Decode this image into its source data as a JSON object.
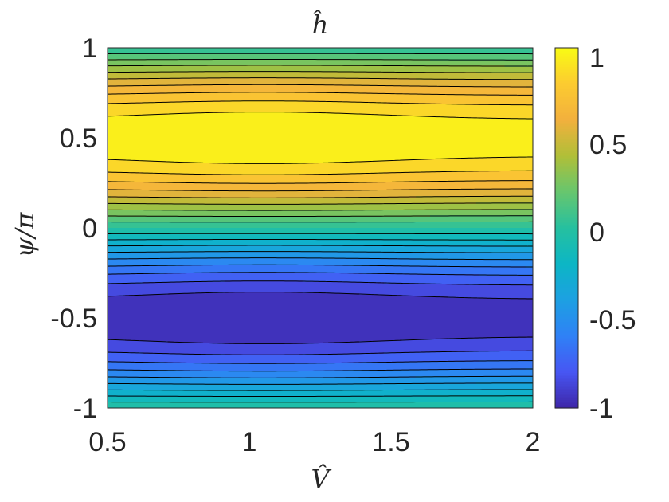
{
  "chart_data": {
    "type": "heatmap",
    "title": "ĥ",
    "xlabel": "V̂",
    "ylabel": "ψ/π",
    "xlim": [
      0.5,
      2
    ],
    "ylim": [
      -1,
      1
    ],
    "x_ticks": [
      "0.5",
      "1",
      "1.5",
      "2"
    ],
    "y_ticks": [
      "1",
      "0.5",
      "0",
      "-0.5",
      "-1"
    ],
    "colorbar": {
      "range": [
        -1,
        1
      ],
      "ticks": [
        "1",
        "0.5",
        "0",
        "-0.5",
        "-1"
      ],
      "colormap": "parula"
    },
    "contour_levels": [
      -1,
      -0.9,
      -0.8,
      -0.7,
      -0.6,
      -0.5,
      -0.4,
      -0.3,
      -0.2,
      -0.1,
      0,
      0.1,
      0.2,
      0.3,
      0.4,
      0.5,
      0.6,
      0.7,
      0.8,
      0.9,
      1
    ],
    "contour_style": "dashed black",
    "field_description": "h approx sin(pi*psi) with peak amplitude reaching about 1 near V=1, slightly lower toward V=2",
    "grid": false
  }
}
